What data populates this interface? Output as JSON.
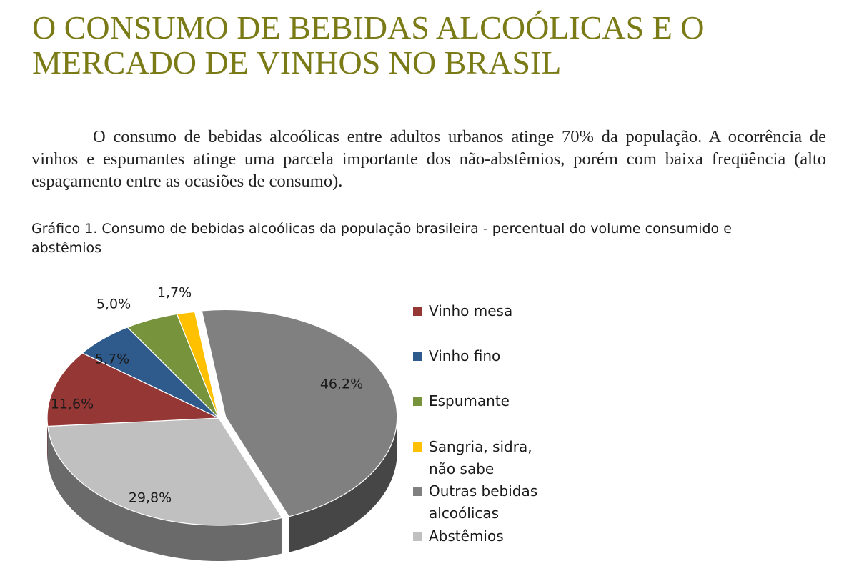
{
  "document": {
    "title": "O CONSUMO DE BEBIDAS ALCOÓLICAS E O MERCADO DE VINHOS NO BRASIL",
    "paragraph": "O consumo de bebidas alcoólicas entre adultos urbanos atinge 70% da população. A ocorrência de vinhos e espumantes atinge uma parcela importante dos não-abstêmios, porém com baixa freqüência (alto espaçamento entre as ocasiões de consumo).",
    "chart_caption": "Gráfico 1. Consumo de bebidas alcoólicas da população brasileira - percentual do volume consumido e abstêmios"
  },
  "chart_data": {
    "type": "pie",
    "style": "3d",
    "title": "Gráfico 1. Consumo de bebidas alcoólicas da população brasileira - percentual do volume consumido e abstêmios",
    "legend_position": "right",
    "slices": [
      {
        "label": "Outras bebidas\nalcoólicas",
        "value": 46.2,
        "value_label": "46,2%",
        "color": "#808080"
      },
      {
        "label": "Abstêmios",
        "value": 29.8,
        "value_label": "29,8%",
        "color": "#c0c0c0"
      },
      {
        "label": "Vinho mesa",
        "value": 11.6,
        "value_label": "11,6%",
        "color": "#953735"
      },
      {
        "label": "Vinho fino",
        "value": 5.7,
        "value_label": "5,7%",
        "color": "#2e5a8c"
      },
      {
        "label": "Espumante",
        "value": 5.0,
        "value_label": "5,0%",
        "color": "#77933c"
      },
      {
        "label": "Sangria, sidra,\nnão sabe",
        "value": 1.7,
        "value_label": "1,7%",
        "color": "#ffc000"
      }
    ],
    "legend_order": [
      2,
      3,
      4,
      5,
      0,
      1
    ]
  }
}
